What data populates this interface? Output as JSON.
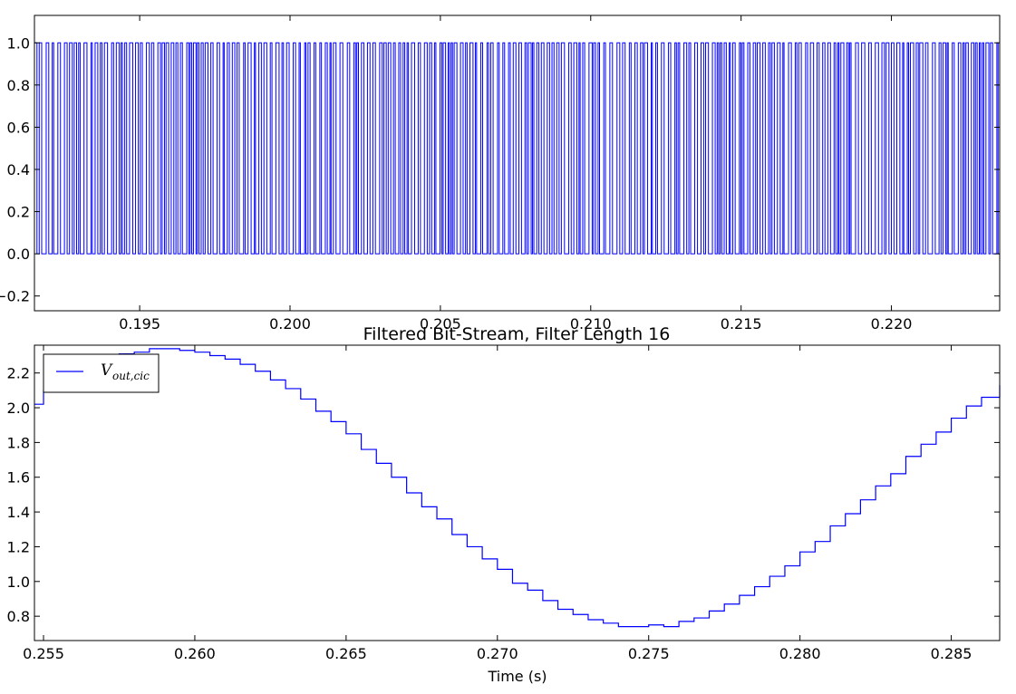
{
  "chart_data": [
    {
      "type": "line",
      "title": "",
      "xlabel": "",
      "ylabel": "",
      "xlim": [
        0.1915,
        0.2236
      ],
      "ylim": [
        -0.27,
        1.13
      ],
      "xticks": [
        0.195,
        0.2,
        0.205,
        0.21,
        0.215,
        0.22
      ],
      "xtick_labels": [
        "0.195",
        "0.200",
        "0.205",
        "0.210",
        "0.215",
        "0.220"
      ],
      "yticks": [
        -0.2,
        0.0,
        0.2,
        0.4,
        0.6,
        0.8,
        1.0
      ],
      "ytick_labels": [
        "−0.2",
        "0.0",
        "0.2",
        "0.4",
        "0.6",
        "0.8",
        "1.0"
      ],
      "series": [
        {
          "description_values": "binary bit-stream, values alternate between 0 and 1",
          "levels": [
            0,
            1
          ],
          "color": "#0000ff"
        }
      ],
      "grid": false
    },
    {
      "type": "line",
      "title": "Filtered Bit-Stream, Filter Length 16",
      "xlabel": "Time (s)",
      "ylabel": "",
      "xlim": [
        0.2547,
        0.2866
      ],
      "ylim": [
        0.66,
        2.36
      ],
      "xticks": [
        0.255,
        0.26,
        0.265,
        0.27,
        0.275,
        0.28,
        0.285
      ],
      "xtick_labels": [
        "0.255",
        "0.260",
        "0.265",
        "0.270",
        "0.275",
        "0.280",
        "0.285"
      ],
      "yticks": [
        0.8,
        1.0,
        1.2,
        1.4,
        1.6,
        1.8,
        2.0,
        2.2
      ],
      "ytick_labels": [
        "0.8",
        "1.0",
        "1.2",
        "1.4",
        "1.6",
        "1.8",
        "2.0",
        "2.2"
      ],
      "legend": {
        "placement": "top-left",
        "entries": [
          {
            "main": "V",
            "sub": "out,cic"
          }
        ]
      },
      "series": [
        {
          "name": "V_out,cic",
          "color": "#0000ff",
          "step": true,
          "x": [
            0.2547,
            0.255,
            0.2555,
            0.256,
            0.2565,
            0.257,
            0.2575,
            0.258,
            0.2585,
            0.259,
            0.2595,
            0.26,
            0.2605,
            0.261,
            0.2615,
            0.262,
            0.2625,
            0.263,
            0.2635,
            0.264,
            0.2645,
            0.265,
            0.2655,
            0.266,
            0.2665,
            0.267,
            0.2675,
            0.268,
            0.2685,
            0.269,
            0.2695,
            0.27,
            0.2705,
            0.271,
            0.2715,
            0.272,
            0.2725,
            0.273,
            0.2735,
            0.274,
            0.2745,
            0.275,
            0.2755,
            0.276,
            0.2765,
            0.277,
            0.2775,
            0.278,
            0.2785,
            0.279,
            0.2795,
            0.28,
            0.2805,
            0.281,
            0.2815,
            0.282,
            0.2825,
            0.283,
            0.2835,
            0.284,
            0.2845,
            0.285,
            0.2855,
            0.286,
            0.2866
          ],
          "y": [
            2.02,
            2.1,
            2.18,
            2.24,
            2.28,
            2.3,
            2.31,
            2.32,
            2.34,
            2.34,
            2.33,
            2.32,
            2.3,
            2.28,
            2.25,
            2.21,
            2.16,
            2.11,
            2.05,
            1.98,
            1.92,
            1.85,
            1.76,
            1.68,
            1.6,
            1.51,
            1.43,
            1.36,
            1.27,
            1.2,
            1.13,
            1.07,
            0.99,
            0.95,
            0.89,
            0.84,
            0.81,
            0.78,
            0.76,
            0.74,
            0.74,
            0.75,
            0.74,
            0.77,
            0.79,
            0.83,
            0.87,
            0.92,
            0.97,
            1.03,
            1.09,
            1.17,
            1.23,
            1.32,
            1.39,
            1.47,
            1.55,
            1.62,
            1.72,
            1.79,
            1.86,
            1.94,
            2.01,
            2.06,
            2.13
          ]
        }
      ],
      "grid": false
    }
  ]
}
